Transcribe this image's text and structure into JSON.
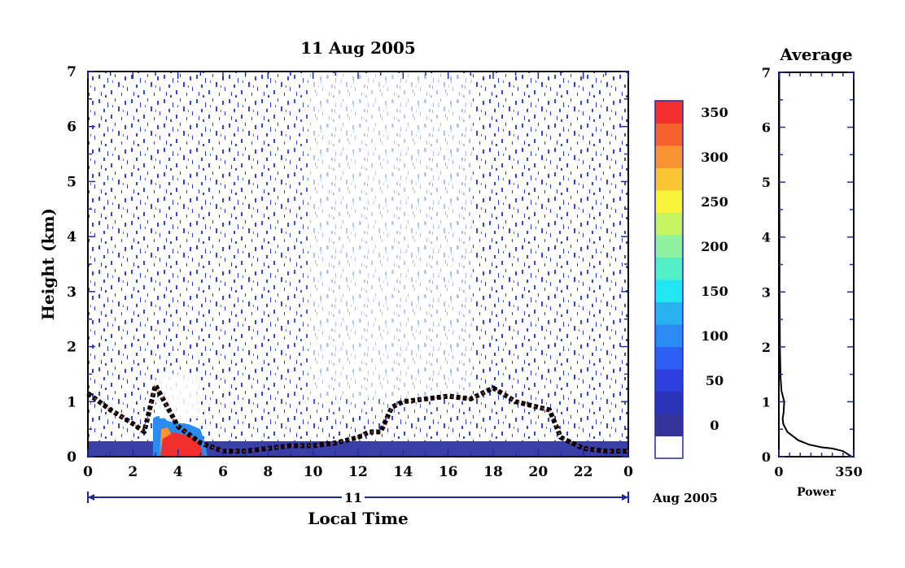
{
  "chart_data": [
    {
      "type": "heatmap",
      "title": "11 Aug 2005",
      "xlabel": "Local Time",
      "ylabel": "Height (km)",
      "xlim": [
        0,
        24
      ],
      "ylim": [
        0,
        7
      ],
      "x_ticks": [
        "0",
        "2",
        "4",
        "6",
        "8",
        "10",
        "12",
        "14",
        "16",
        "18",
        "20",
        "22",
        "0"
      ],
      "y_ticks": [
        "0",
        "1",
        "2",
        "3",
        "4",
        "5",
        "6",
        "7"
      ],
      "date_axis": {
        "day": "11",
        "month_year": "Aug 2005"
      },
      "colorbar": {
        "labels": [
          "0",
          "50",
          "100",
          "150",
          "200",
          "250",
          "300",
          "350"
        ],
        "levels": [
          0,
          25,
          50,
          75,
          100,
          125,
          150,
          175,
          200,
          225,
          250,
          275,
          300,
          325,
          350,
          375
        ],
        "colors": [
          "#ffffff",
          "#333399",
          "#2b34b8",
          "#2d3fdc",
          "#2d5ff2",
          "#2a8bf2",
          "#29b2f0",
          "#22e6f2",
          "#52f0c4",
          "#8cf2a0",
          "#c4f560",
          "#f7f43a",
          "#f9c733",
          "#f99333",
          "#f5602f",
          "#f23030"
        ]
      },
      "boundary_layer_top_km": [
        [
          0,
          1.15
        ],
        [
          1,
          0.85
        ],
        [
          2,
          0.6
        ],
        [
          2.5,
          0.45
        ],
        [
          3,
          1.3
        ],
        [
          4,
          0.55
        ],
        [
          5,
          0.25
        ],
        [
          6,
          0.1
        ],
        [
          7,
          0.1
        ],
        [
          8,
          0.15
        ],
        [
          9,
          0.2
        ],
        [
          10,
          0.2
        ],
        [
          11,
          0.25
        ],
        [
          12,
          0.35
        ],
        [
          12.5,
          0.45
        ],
        [
          13,
          0.45
        ],
        [
          13.5,
          0.9
        ],
        [
          14,
          1.0
        ],
        [
          15,
          1.05
        ],
        [
          16,
          1.1
        ],
        [
          17,
          1.05
        ],
        [
          18,
          1.25
        ],
        [
          19,
          1.0
        ],
        [
          20,
          0.9
        ],
        [
          20.5,
          0.85
        ],
        [
          21,
          0.35
        ],
        [
          22,
          0.15
        ],
        [
          23,
          0.1
        ],
        [
          24,
          0.1
        ]
      ]
    },
    {
      "type": "line",
      "title": "Average",
      "xlabel": "Power",
      "ylabel": "",
      "xlim": [
        0,
        350
      ],
      "ylim": [
        0,
        7
      ],
      "x_ticks": [
        "0",
        "350"
      ],
      "y_ticks": [
        "0",
        "1",
        "2",
        "3",
        "4",
        "5",
        "6",
        "7"
      ],
      "series": [
        {
          "points": [
            [
              340,
              0.0
            ],
            [
              300,
              0.1
            ],
            [
              250,
              0.15
            ],
            [
              200,
              0.17
            ],
            [
              140,
              0.22
            ],
            [
              90,
              0.3
            ],
            [
              40,
              0.45
            ],
            [
              20,
              0.6
            ],
            [
              18,
              0.7
            ],
            [
              22,
              0.8
            ],
            [
              25,
              1.0
            ],
            [
              12,
              1.2
            ],
            [
              8,
              1.45
            ],
            [
              6,
              1.8
            ],
            [
              5,
              2.0
            ],
            [
              4,
              2.5
            ],
            [
              3,
              3.0
            ],
            [
              3,
              4.0
            ],
            [
              2,
              5.0
            ],
            [
              2,
              6.0
            ],
            [
              2,
              7.0
            ]
          ]
        }
      ]
    }
  ]
}
